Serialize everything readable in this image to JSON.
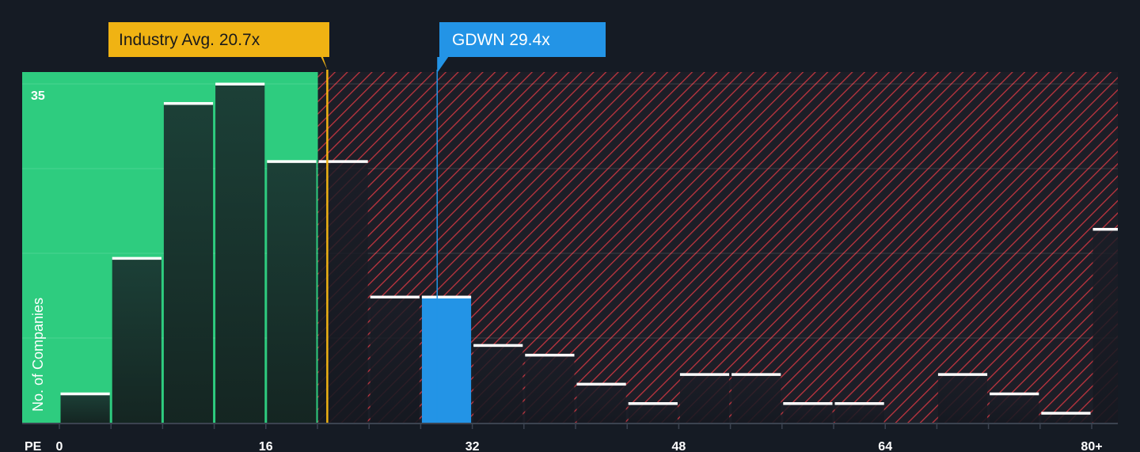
{
  "chart_data": {
    "type": "bar",
    "x_label": "PE",
    "y_label": "No. of Companies",
    "x_ticks": [
      "0",
      "16",
      "32",
      "48",
      "64",
      "80+"
    ],
    "x_tick_values": [
      0,
      16,
      32,
      48,
      64,
      80
    ],
    "y_ticks": [
      "35"
    ],
    "y_tick_values": [
      35
    ],
    "ylim": [
      0,
      36
    ],
    "bin_width": 4,
    "bins": [
      {
        "x0": 0,
        "x1": 4,
        "value": 3
      },
      {
        "x0": 4,
        "x1": 8,
        "value": 17
      },
      {
        "x0": 8,
        "x1": 12,
        "value": 33
      },
      {
        "x0": 12,
        "x1": 16,
        "value": 35
      },
      {
        "x0": 16,
        "x1": 20,
        "value": 27
      },
      {
        "x0": 20,
        "x1": 24,
        "value": 27
      },
      {
        "x0": 24,
        "x1": 28,
        "value": 13
      },
      {
        "x0": 28,
        "x1": 32,
        "value": 13
      },
      {
        "x0": 32,
        "x1": 36,
        "value": 8
      },
      {
        "x0": 36,
        "x1": 40,
        "value": 7
      },
      {
        "x0": 40,
        "x1": 44,
        "value": 4
      },
      {
        "x0": 44,
        "x1": 48,
        "value": 2
      },
      {
        "x0": 48,
        "x1": 52,
        "value": 5
      },
      {
        "x0": 52,
        "x1": 56,
        "value": 5
      },
      {
        "x0": 56,
        "x1": 60,
        "value": 2
      },
      {
        "x0": 60,
        "x1": 64,
        "value": 2
      },
      {
        "x0": 64,
        "x1": 68,
        "value": 0
      },
      {
        "x0": 68,
        "x1": 72,
        "value": 5
      },
      {
        "x0": 72,
        "x1": 76,
        "value": 3
      },
      {
        "x0": 76,
        "x1": 80,
        "value": 1
      },
      {
        "x0": 80,
        "x1": 82,
        "value": 20
      }
    ],
    "highlight_bin_index": 7,
    "industry_avg": {
      "label": "Industry Avg. 20.7x",
      "value": 20.7
    },
    "company": {
      "label": "GDWN 29.4x",
      "value": 29.4
    },
    "colors": {
      "background": "#151b24",
      "fair_zone": "#2ecc7f",
      "over_zone_stripe": "#c0353f",
      "industry": "#f0b313",
      "company": "#2394e6",
      "bar_dark": "#1c2a2a",
      "cap": "#ffffff"
    }
  }
}
